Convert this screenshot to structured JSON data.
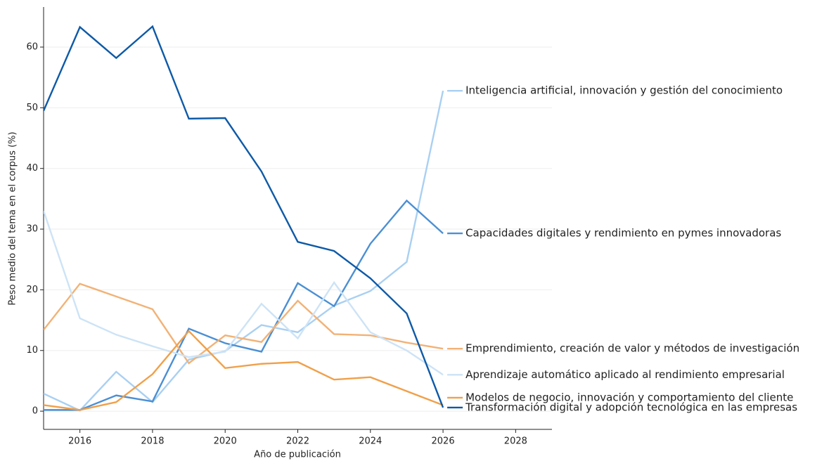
{
  "chart_data": {
    "type": "line",
    "x_label": "Año de publicación",
    "y_label": "Peso medio del tema en el corpus (%)",
    "x": [
      2015,
      2016,
      2017,
      2018,
      2019,
      2020,
      2021,
      2022,
      2023,
      2024,
      2025,
      2026
    ],
    "series": [
      {
        "name": "Inteligencia artificial, innovación y gestión del conocimiento",
        "color": "#a9d0f2",
        "values": [
          2.9,
          0.1,
          6.5,
          1.5,
          8.5,
          9.9,
          14.2,
          13.0,
          17.4,
          19.8,
          24.6,
          52.8
        ]
      },
      {
        "name": "Capacidades digitales y rendimiento en pymes innovadoras",
        "color": "#4b8fd3",
        "values": [
          0.2,
          0.2,
          2.6,
          1.6,
          13.6,
          11.2,
          9.8,
          21.1,
          17.3,
          27.6,
          34.7,
          29.3
        ]
      },
      {
        "name": "Emprendimiento, creación de valor y métodos de investigación",
        "color": "#f2b276",
        "values": [
          13.4,
          21.0,
          18.9,
          16.8,
          7.9,
          12.5,
          11.4,
          18.2,
          12.7,
          12.5,
          11.3,
          10.3
        ]
      },
      {
        "name": "Aprendizaje automático aplicado al rendimiento empresarial",
        "color": "#cde3f6",
        "values": [
          33.0,
          15.3,
          12.6,
          10.7,
          8.9,
          9.8,
          17.7,
          12.0,
          21.2,
          13.0,
          10.0,
          6.0
        ]
      },
      {
        "name": "Modelos de negocio, innovación y comportamiento del cliente",
        "color": "#f0a04a",
        "values": [
          1.0,
          0.2,
          1.5,
          6.1,
          13.2,
          7.1,
          7.8,
          8.1,
          5.2,
          5.6,
          3.3,
          1.0
        ]
      },
      {
        "name": "Transformación digital y adopción tecnológica en las empresas",
        "color": "#0e5aa7",
        "values": [
          49.5,
          63.3,
          58.2,
          63.4,
          48.2,
          48.3,
          39.5,
          27.9,
          26.4,
          21.9,
          16.1,
          0.6
        ]
      }
    ],
    "xlim": [
      2015,
      2029
    ],
    "xticks": [
      2016,
      2018,
      2020,
      2022,
      2024,
      2026,
      2028
    ],
    "ylim": [
      -3,
      66.6
    ],
    "yticks": [
      0,
      10,
      20,
      30,
      40,
      50,
      60
    ],
    "grid": true
  }
}
